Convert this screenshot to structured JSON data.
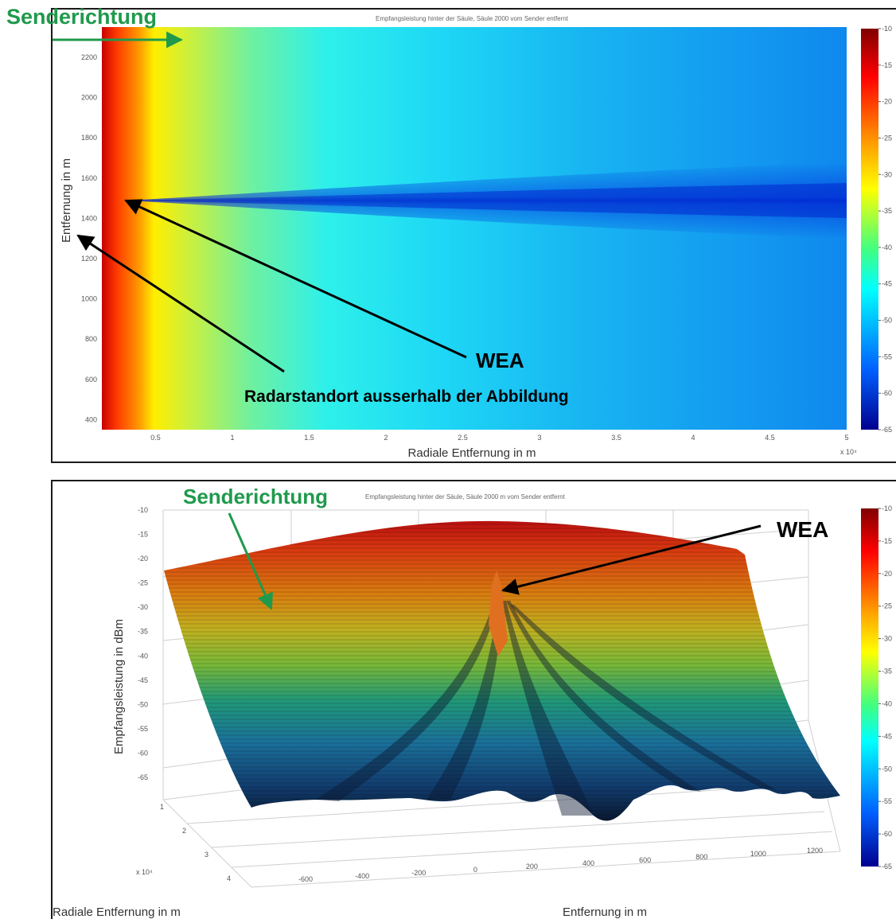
{
  "annotations": {
    "top_sender": "Senderichtung",
    "top_wea": "WEA",
    "top_radar": "Radarstandort ausserhalb der Abbildung",
    "bottom_sender": "Senderichtung",
    "bottom_wea": "WEA"
  },
  "colors": {
    "annotation_green": "#1f9a4c",
    "arrow_black": "#000000",
    "frame": "#1a1a1a"
  },
  "chart_data": [
    {
      "type": "heatmap",
      "title": "Empfangsleistung hinter der Säule, Säule 2000 vom Sender entfernt",
      "xlabel": "Radiale Entfernung in m",
      "ylabel": "Entfernung in m",
      "x_exponent": "x 10⁴",
      "xlim": [
        0.15,
        5
      ],
      "ylim": [
        350,
        2350
      ],
      "xticks": [
        "0.5",
        "1",
        "1.5",
        "2",
        "2.5",
        "3",
        "3.5",
        "4",
        "4.5",
        "5"
      ],
      "yticks": [
        "400",
        "600",
        "800",
        "1000",
        "1200",
        "1400",
        "1600",
        "1800",
        "2000",
        "2200"
      ],
      "colorbar": {
        "range": [
          -65,
          -10
        ],
        "ticks": [
          "-10",
          "-15",
          "-20",
          "-25",
          "-30",
          "-35",
          "-40",
          "-45",
          "-50",
          "-55",
          "-60",
          "-65"
        ]
      },
      "shadow_center_y": 1500,
      "values_summary": [
        {
          "x": 0.2,
          "level": -12
        },
        {
          "x": 0.5,
          "level": -30
        },
        {
          "x": 1.0,
          "level": -38
        },
        {
          "x": 2.0,
          "level": -46
        },
        {
          "x": 3.0,
          "level": -50
        },
        {
          "x": 4.0,
          "level": -52
        },
        {
          "x": 5.0,
          "level": -55
        }
      ]
    },
    {
      "type": "surface",
      "title": "Empfangsleistung hinter der Säule, Säule 2000 m vom Sender entfernt",
      "xlabel": "Entfernung in m",
      "ylabel": "Radiale Entfernung in m",
      "zlabel": "Empfangsleistung in dBm",
      "y_exponent": "x 10⁴",
      "xticks": [
        "-600",
        "-400",
        "-200",
        "0",
        "200",
        "400",
        "600",
        "800",
        "1000",
        "1200"
      ],
      "yticks": [
        "1",
        "2",
        "3",
        "4"
      ],
      "zticks": [
        "-10",
        "-15",
        "-20",
        "-25",
        "-30",
        "-35",
        "-40",
        "-45",
        "-50",
        "-55",
        "-60",
        "-65"
      ],
      "zlim": [
        -65,
        -10
      ],
      "colorbar": {
        "range": [
          -65,
          -10
        ],
        "ticks": [
          "-10",
          "-15",
          "-20",
          "-25",
          "-30",
          "-35",
          "-40",
          "-45",
          "-50",
          "-55",
          "-60",
          "-65"
        ]
      }
    }
  ]
}
